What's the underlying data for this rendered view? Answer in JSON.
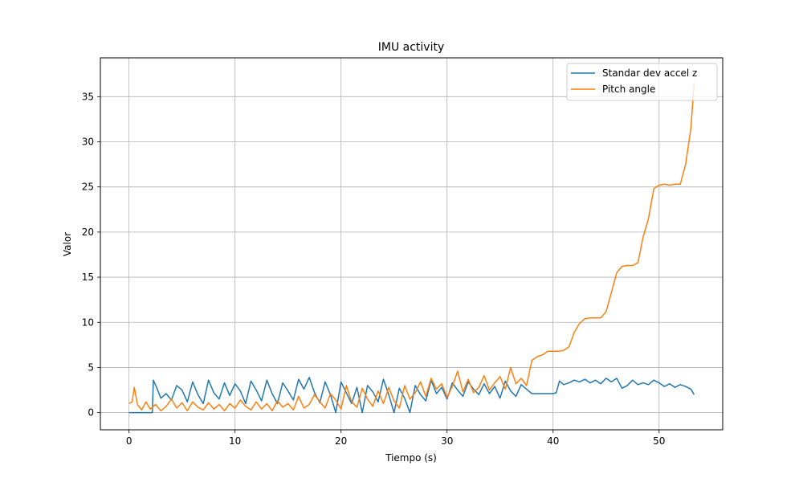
{
  "chart_data": {
    "type": "line",
    "title": "IMU activity",
    "xlabel": "Tiempo (s)",
    "ylabel": "Valor",
    "xlim": [
      -2.7,
      56.0
    ],
    "ylim": [
      -1.9,
      39.3
    ],
    "xticks": [
      0,
      10,
      20,
      30,
      40,
      50
    ],
    "yticks": [
      0,
      5,
      10,
      15,
      20,
      25,
      30,
      35
    ],
    "xtick_labels": [
      "0",
      "10",
      "20",
      "30",
      "40",
      "50"
    ],
    "ytick_labels": [
      "0",
      "5",
      "10",
      "15",
      "20",
      "25",
      "30",
      "35"
    ],
    "grid": true,
    "legend_position": "top-right",
    "series": [
      {
        "name": "Standar dev accel z",
        "color": "#1f77b4",
        "x": [
          0.0,
          2.2,
          2.3,
          2.6,
          3.0,
          3.5,
          4.0,
          4.5,
          5.0,
          5.5,
          6.0,
          6.5,
          7.0,
          7.5,
          8.0,
          8.5,
          9.0,
          9.5,
          10.0,
          10.5,
          11.0,
          11.5,
          12.0,
          12.5,
          13.0,
          13.5,
          14.0,
          14.5,
          15.0,
          15.5,
          16.0,
          16.5,
          17.0,
          17.5,
          18.0,
          18.5,
          19.0,
          19.5,
          20.0,
          20.5,
          21.0,
          21.5,
          22.0,
          22.5,
          23.0,
          23.5,
          24.0,
          24.5,
          25.0,
          25.5,
          26.0,
          26.5,
          27.0,
          27.5,
          28.0,
          28.5,
          29.0,
          29.5,
          30.0,
          30.5,
          31.0,
          31.5,
          32.0,
          32.5,
          33.0,
          33.5,
          34.0,
          34.5,
          35.0,
          35.5,
          36.0,
          36.5,
          37.0,
          37.5,
          38.0,
          38.5,
          39.0,
          39.5,
          40.0,
          40.3,
          40.6,
          41.0,
          41.5,
          42.0,
          42.5,
          43.0,
          43.5,
          44.0,
          44.5,
          45.0,
          45.5,
          46.0,
          46.5,
          47.0,
          47.5,
          48.0,
          48.5,
          49.0,
          49.5,
          50.0,
          50.5,
          51.0,
          51.5,
          52.0,
          52.5,
          53.0,
          53.3
        ],
        "y": [
          0.0,
          0.0,
          3.6,
          2.8,
          1.6,
          2.1,
          1.4,
          3.0,
          2.5,
          1.2,
          3.4,
          2.0,
          1.0,
          3.6,
          2.2,
          1.5,
          3.3,
          1.9,
          3.2,
          2.4,
          1.0,
          3.5,
          2.5,
          1.3,
          3.6,
          2.1,
          1.0,
          3.3,
          2.4,
          1.4,
          3.7,
          2.6,
          3.9,
          2.2,
          1.1,
          3.4,
          2.0,
          0.0,
          3.4,
          2.2,
          1.0,
          2.8,
          0.0,
          3.0,
          2.3,
          1.2,
          3.7,
          2.0,
          0.0,
          2.7,
          1.6,
          0.0,
          3.0,
          2.0,
          1.3,
          3.6,
          2.1,
          2.8,
          1.5,
          3.3,
          2.5,
          1.8,
          3.4,
          2.6,
          2.0,
          3.2,
          2.1,
          2.9,
          1.6,
          3.5,
          2.4,
          1.8,
          3.1,
          2.6,
          2.1,
          2.1,
          2.1,
          2.1,
          2.1,
          2.2,
          3.5,
          3.1,
          3.3,
          3.6,
          3.4,
          3.7,
          3.3,
          3.6,
          3.2,
          3.8,
          3.4,
          3.8,
          2.7,
          3.0,
          3.6,
          3.1,
          3.3,
          3.1,
          3.6,
          3.3,
          2.9,
          3.2,
          2.8,
          3.1,
          2.9,
          2.6,
          2.0
        ]
      },
      {
        "name": "Pitch angle",
        "color": "#ff7f0e",
        "x": [
          0.0,
          0.3,
          0.5,
          0.8,
          1.2,
          1.6,
          2.0,
          2.5,
          3.0,
          3.5,
          4.0,
          4.5,
          5.0,
          5.5,
          6.0,
          6.5,
          7.0,
          7.5,
          8.0,
          8.5,
          9.0,
          9.5,
          10.0,
          10.5,
          11.0,
          11.5,
          12.0,
          12.5,
          13.0,
          13.5,
          14.0,
          14.5,
          15.0,
          15.5,
          16.0,
          16.5,
          17.0,
          17.5,
          18.0,
          18.5,
          19.0,
          19.5,
          20.0,
          20.5,
          21.0,
          21.5,
          22.0,
          22.5,
          23.0,
          23.5,
          24.0,
          24.5,
          25.0,
          25.5,
          26.0,
          26.5,
          27.0,
          27.5,
          28.0,
          28.5,
          29.0,
          29.5,
          30.0,
          30.5,
          31.0,
          31.5,
          32.0,
          32.5,
          33.0,
          33.5,
          34.0,
          34.5,
          35.0,
          35.5,
          36.0,
          36.5,
          37.0,
          37.5,
          38.0,
          38.5,
          39.0,
          39.5,
          40.0,
          40.5,
          41.0,
          41.5,
          42.0,
          42.5,
          43.0,
          43.5,
          44.0,
          44.5,
          45.0,
          45.5,
          46.0,
          46.5,
          47.0,
          47.5,
          48.0,
          48.5,
          49.0,
          49.5,
          50.0,
          50.5,
          51.0,
          51.5,
          52.0,
          52.5,
          53.0,
          53.3
        ],
        "y": [
          1.0,
          1.2,
          2.8,
          0.9,
          0.3,
          1.2,
          0.4,
          0.9,
          0.2,
          0.7,
          1.5,
          0.5,
          1.1,
          0.2,
          1.2,
          0.6,
          0.3,
          1.1,
          0.4,
          0.9,
          0.2,
          1.0,
          0.5,
          1.4,
          0.7,
          0.3,
          1.2,
          0.4,
          1.0,
          0.2,
          1.3,
          0.6,
          1.0,
          0.3,
          1.8,
          0.5,
          0.9,
          2.0,
          1.2,
          0.5,
          2.1,
          1.4,
          0.4,
          3.0,
          1.2,
          0.6,
          2.7,
          1.5,
          0.7,
          2.4,
          1.0,
          2.8,
          1.3,
          0.5,
          3.0,
          1.5,
          2.2,
          3.4,
          1.8,
          3.8,
          2.6,
          3.2,
          1.7,
          2.9,
          4.6,
          2.3,
          3.7,
          2.2,
          2.8,
          4.1,
          2.5,
          3.3,
          4.0,
          2.6,
          5.0,
          3.2,
          3.8,
          3.0,
          5.8,
          6.2,
          6.4,
          6.8,
          6.8,
          6.8,
          6.9,
          7.3,
          8.9,
          9.9,
          10.4,
          10.5,
          10.5,
          10.5,
          11.2,
          13.3,
          15.5,
          16.2,
          16.3,
          16.3,
          16.6,
          19.5,
          21.5,
          24.8,
          25.2,
          25.3,
          25.2,
          25.3,
          25.3,
          27.5,
          31.5,
          36.5
        ]
      }
    ]
  }
}
